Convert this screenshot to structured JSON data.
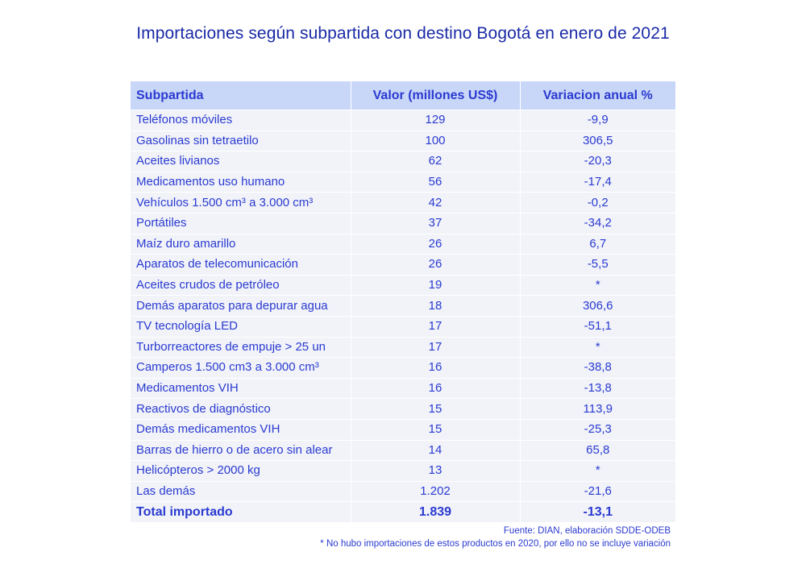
{
  "title": "Importaciones según subpartida con destino Bogotá en enero de 2021",
  "table": {
    "headers": [
      "Subpartida",
      "Valor (millones US$)",
      "Variacion anual %"
    ],
    "rows": [
      [
        "Teléfonos móviles",
        "129",
        "-9,9"
      ],
      [
        "Gasolinas sin tetraetilo",
        "100",
        "306,5"
      ],
      [
        "Aceites livianos",
        "62",
        "-20,3"
      ],
      [
        "Medicamentos uso humano",
        "56",
        "-17,4"
      ],
      [
        "Vehículos   1.500 cm³ a 3.000 cm³",
        "42",
        "-0,2"
      ],
      [
        "Portátiles",
        "37",
        "-34,2"
      ],
      [
        "Maíz duro amarillo",
        "26",
        "6,7"
      ],
      [
        "Aparatos de telecomunicación",
        "26",
        "-5,5"
      ],
      [
        "Aceites crudos de petróleo",
        "19",
        "*"
      ],
      [
        "Demás aparatos para depurar agua",
        "18",
        "306,6"
      ],
      [
        "TV tecnología LED",
        "17",
        "-51,1"
      ],
      [
        "Turborreactores de empuje > 25 un",
        "17",
        "*"
      ],
      [
        "Camperos 1.500 cm3 a 3.000 cm³",
        "16",
        "-38,8"
      ],
      [
        "Medicamentos VIH",
        "16",
        "-13,8"
      ],
      [
        "Reactivos de diagnóstico",
        "15",
        "113,9"
      ],
      [
        "Demás medicamentos VIH",
        "15",
        "-25,3"
      ],
      [
        "Barras de hierro o de acero sin alear",
        "14",
        "65,8"
      ],
      [
        "Helicópteros > 2000 kg",
        "13",
        "*"
      ],
      [
        "Las demás",
        "1.202",
        "-21,6"
      ]
    ],
    "total": [
      "Total importado",
      "1.839",
      "-13,1"
    ]
  },
  "footnotes": {
    "source": "Fuente: DIAN, elaboración SDDE-ODEB",
    "note": "* No hubo importaciones de estos productos en 2020, por ello no se incluye variación"
  }
}
